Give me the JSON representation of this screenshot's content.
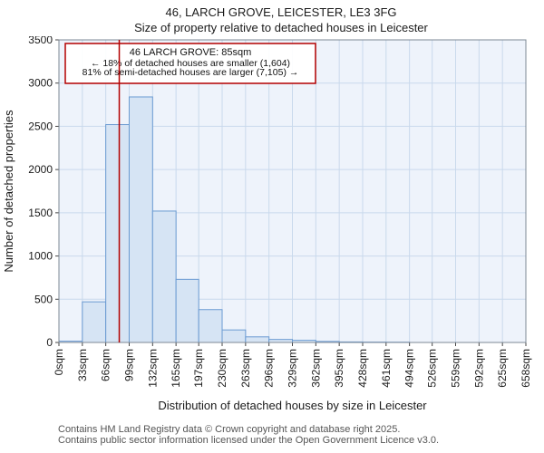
{
  "title": "46, LARCH GROVE, LEICESTER, LE3 3FG",
  "subtitle": "Size of property relative to detached houses in Leicester",
  "chart_data": {
    "type": "bar",
    "title": "46, LARCH GROVE, LEICESTER, LE3 3FG",
    "subtitle": "Size of property relative to detached houses in Leicester",
    "xlabel": "Distribution of detached houses by size in Leicester",
    "ylabel": "Number of detached properties",
    "ylim": [
      0,
      3500
    ],
    "ytick_step": 500,
    "bin_edges": [
      0,
      33,
      66,
      99,
      132,
      165,
      197,
      230,
      263,
      296,
      329,
      362,
      395,
      428,
      461,
      494,
      526,
      559,
      592,
      625,
      658
    ],
    "x_tick_labels": [
      "0sqm",
      "33sqm",
      "66sqm",
      "99sqm",
      "132sqm",
      "165sqm",
      "197sqm",
      "230sqm",
      "263sqm",
      "296sqm",
      "329sqm",
      "362sqm",
      "395sqm",
      "428sqm",
      "461sqm",
      "494sqm",
      "526sqm",
      "559sqm",
      "592sqm",
      "625sqm",
      "658sqm"
    ],
    "values": [
      15,
      470,
      2520,
      2840,
      1520,
      730,
      380,
      145,
      65,
      35,
      25,
      12,
      6,
      4,
      3,
      0,
      0,
      0,
      0,
      0
    ],
    "marker_value": 85,
    "grid": true,
    "legend": "none",
    "colors": {
      "bar_fill": "#d6e4f4",
      "bar_border": "#6b9bd2",
      "marker": "#b30000",
      "grid": "#c9d9ec",
      "plot_bg": "#eef3fb",
      "tick_text": "#1a1a1a"
    },
    "annotation": {
      "line1": "46 LARCH GROVE: 85sqm",
      "line2": "← 18% of detached houses are smaller (1,604)",
      "line3": "81% of semi-detached houses are larger (7,105) →"
    }
  },
  "footer": {
    "line1": "Contains HM Land Registry data © Crown copyright and database right 2025.",
    "line2": "Contains public sector information licensed under the Open Government Licence v3.0."
  }
}
